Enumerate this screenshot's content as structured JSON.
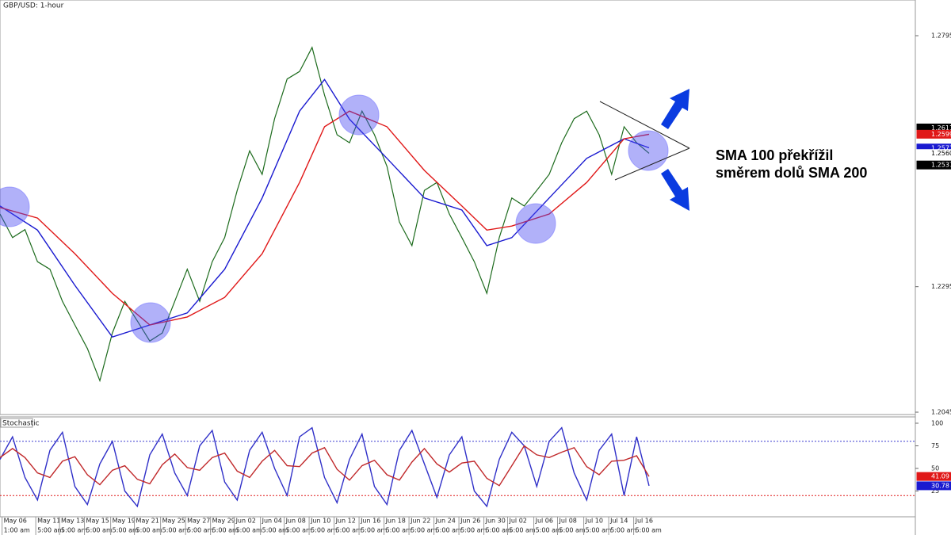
{
  "chart_data": [
    {
      "type": "line",
      "title": "GBP/USD: 1-hour",
      "xlim": [
        0,
        73.33
      ],
      "ylim": [
        1.20406,
        1.28664
      ],
      "yticks": [
        1.27953,
        1.22953,
        1.20453
      ],
      "series": [
        {
          "color": "#1d6b1d",
          "x": [
            0,
            1,
            2,
            3,
            4,
            5,
            6,
            7,
            8,
            9,
            10,
            11,
            12,
            13,
            14,
            15,
            16,
            17,
            18,
            19,
            20,
            21,
            22,
            23,
            24,
            25,
            26,
            27,
            28,
            29,
            30,
            31,
            32,
            33,
            34,
            35,
            36,
            37,
            38,
            39,
            40,
            41,
            42,
            43,
            44,
            45,
            46,
            47,
            48,
            49,
            50,
            51,
            52
          ],
          "values": [
            1.244,
            1.2393,
            1.2409,
            1.2345,
            1.233,
            1.2266,
            1.2219,
            1.2172,
            1.2108,
            1.2203,
            1.2266,
            1.2227,
            1.2187,
            1.2203,
            1.2266,
            1.233,
            1.2266,
            1.2345,
            1.2393,
            1.2487,
            1.2566,
            1.2519,
            1.263,
            1.2709,
            1.2724,
            1.2772,
            1.2677,
            1.2598,
            1.2582,
            1.2645,
            1.2598,
            1.2535,
            1.2424,
            1.2377,
            1.2487,
            1.2503,
            1.244,
            1.2393,
            1.2345,
            1.2282,
            1.2393,
            1.2472,
            1.2456,
            1.2487,
            1.2519,
            1.2582,
            1.263,
            1.2645,
            1.2598,
            1.2519,
            1.2614,
            1.2582,
            1.2561
          ]
        },
        {
          "color": "#1a1ad0",
          "x": [
            0,
            3,
            6,
            9,
            12,
            15,
            18,
            21,
            24,
            26,
            28,
            31,
            34,
            37,
            39,
            41,
            44,
            47,
            50,
            52
          ],
          "values": [
            1.2456,
            1.2408,
            1.2298,
            1.2195,
            1.2219,
            1.2243,
            1.233,
            1.2472,
            1.2645,
            1.2708,
            1.2629,
            1.2551,
            1.2472,
            1.2448,
            1.2377,
            1.2393,
            1.2472,
            1.2551,
            1.259,
            1.2572
          ]
        },
        {
          "color": "#e01818",
          "x": [
            0,
            3,
            6,
            9,
            12,
            15,
            18,
            21,
            24,
            26,
            28,
            31,
            34,
            37,
            39,
            41,
            44,
            47,
            50,
            52
          ],
          "values": [
            1.2453,
            1.2432,
            1.2361,
            1.2282,
            1.2219,
            1.2235,
            1.2274,
            1.2361,
            1.2503,
            1.2614,
            1.2645,
            1.2614,
            1.2527,
            1.2456,
            1.2408,
            1.2416,
            1.244,
            1.2503,
            1.259,
            1.2599
          ]
        }
      ],
      "price_labels": [
        {
          "value": 1.26115,
          "color": "#000000"
        },
        {
          "value": 1.2599,
          "label": "1.25990",
          "color": "#e01818"
        },
        {
          "value": 1.25715,
          "color": "#1a1ad0"
        },
        {
          "value": 1.25605,
          "color": "#ffffff"
        },
        {
          "value": 1.25377,
          "color": "#000000"
        }
      ],
      "annotation": [
        "SMA 100 překřížil",
        "směrem dolů SMA 200"
      ]
    },
    {
      "type": "line",
      "title": "Stochastic",
      "xlim": [
        0,
        73.33
      ],
      "ylim": [
        -3.5,
        107
      ],
      "yticks": [
        100,
        75,
        50,
        25
      ],
      "levels": [
        {
          "value": 80,
          "color": "#3b3bd0"
        },
        {
          "value": 20,
          "color": "#e01818"
        }
      ],
      "series": [
        {
          "color": "#3030c8",
          "x": [
            0,
            1,
            2,
            3,
            4,
            5,
            6,
            7,
            8,
            9,
            10,
            11,
            12,
            13,
            14,
            15,
            16,
            17,
            18,
            19,
            20,
            21,
            22,
            23,
            24,
            25,
            26,
            27,
            28,
            29,
            30,
            31,
            32,
            33,
            34,
            35,
            36,
            37,
            38,
            39,
            40,
            41,
            42,
            43,
            44,
            45,
            46,
            47,
            48,
            49,
            50,
            51,
            52
          ],
          "values": [
            60,
            85,
            40,
            15,
            70,
            90,
            30,
            10,
            55,
            80,
            25,
            8,
            65,
            88,
            45,
            20,
            75,
            92,
            35,
            15,
            70,
            90,
            50,
            20,
            85,
            95,
            40,
            12,
            60,
            88,
            30,
            10,
            70,
            92,
            55,
            18,
            65,
            85,
            25,
            8,
            60,
            90,
            75,
            30,
            80,
            95,
            45,
            15,
            70,
            88,
            20,
            85,
            30.78
          ]
        },
        {
          "color": "#c0282a",
          "x": [
            0,
            1,
            2,
            3,
            4,
            5,
            6,
            7,
            8,
            9,
            10,
            11,
            12,
            13,
            14,
            15,
            16,
            17,
            18,
            19,
            20,
            21,
            22,
            23,
            24,
            25,
            26,
            27,
            28,
            29,
            30,
            31,
            32,
            33,
            34,
            35,
            36,
            37,
            38,
            39,
            40,
            41,
            42,
            43,
            44,
            45,
            46,
            47,
            48,
            49,
            50,
            51,
            52
          ],
          "values": [
            62,
            72,
            62,
            45,
            40,
            58,
            63,
            43,
            32,
            48,
            53,
            38,
            33,
            54,
            66,
            51,
            48,
            62,
            67,
            47,
            40,
            58,
            70,
            53,
            52,
            67,
            73,
            49,
            37,
            53,
            59,
            43,
            37,
            57,
            72,
            55,
            46,
            56,
            58,
            39,
            31,
            53,
            75,
            65,
            62,
            68,
            73,
            52,
            43,
            58,
            59,
            64,
            41.09
          ]
        }
      ],
      "price_labels": [
        {
          "value": 41.09,
          "color": "#e01818"
        },
        {
          "value": 30.78,
          "color": "#1a1ad0"
        }
      ],
      "xticks": [
        {
          "value": 0.8,
          "label": "May 06"
        },
        {
          "value": 3.5,
          "label": "May 11"
        },
        {
          "value": 5.4,
          "label": "May 13"
        },
        {
          "value": 7.4,
          "label": "May 15"
        },
        {
          "value": 9.5,
          "label": "May 19"
        },
        {
          "value": 11.4,
          "label": "May 21"
        },
        {
          "value": 13.5,
          "label": "May 25"
        },
        {
          "value": 15.5,
          "label": "May 27"
        },
        {
          "value": 17.5,
          "label": "May 29"
        },
        {
          "value": 19.4,
          "label": "Jun 02"
        },
        {
          "value": 21.5,
          "label": "Jun 04"
        },
        {
          "value": 23.4,
          "label": "Jun 08"
        },
        {
          "value": 25.4,
          "label": "Jun 10"
        },
        {
          "value": 27.4,
          "label": "Jun 12"
        },
        {
          "value": 29.4,
          "label": "Jun 16"
        },
        {
          "value": 31.4,
          "label": "Jun 18"
        },
        {
          "value": 33.4,
          "label": "Jun 22"
        },
        {
          "value": 35.4,
          "label": "Jun 24"
        },
        {
          "value": 37.4,
          "label": "Jun 26"
        },
        {
          "value": 39.4,
          "label": "Jun 30"
        },
        {
          "value": 41.3,
          "label": "Jul 02"
        },
        {
          "value": 43.4,
          "label": "Jul 06"
        },
        {
          "value": 45.3,
          "label": "Jul 08"
        },
        {
          "value": 47.4,
          "label": "Jul 10"
        },
        {
          "value": 49.4,
          "label": "Jul 14"
        },
        {
          "value": 51.4,
          "label": "Jul 16"
        }
      ],
      "time_labels": [
        "1:00 am",
        "5:00 am",
        "5:00 am",
        "5:00 am",
        "5:00 am",
        "5:00 am",
        "5:00 am",
        "5:00 am",
        "5:00 am",
        "5:00 am",
        "5:00 am",
        "5:00 am",
        "5:00 am",
        "5:00 am",
        "5:00 am",
        "5:00 am",
        "5:00 am",
        "5:00 am",
        "5:00 am",
        "5:00 am",
        "5:00 am",
        "5:00 am",
        "5:00 am",
        "5:00 am",
        "5:00 am",
        "5:00 am"
      ]
    }
  ]
}
